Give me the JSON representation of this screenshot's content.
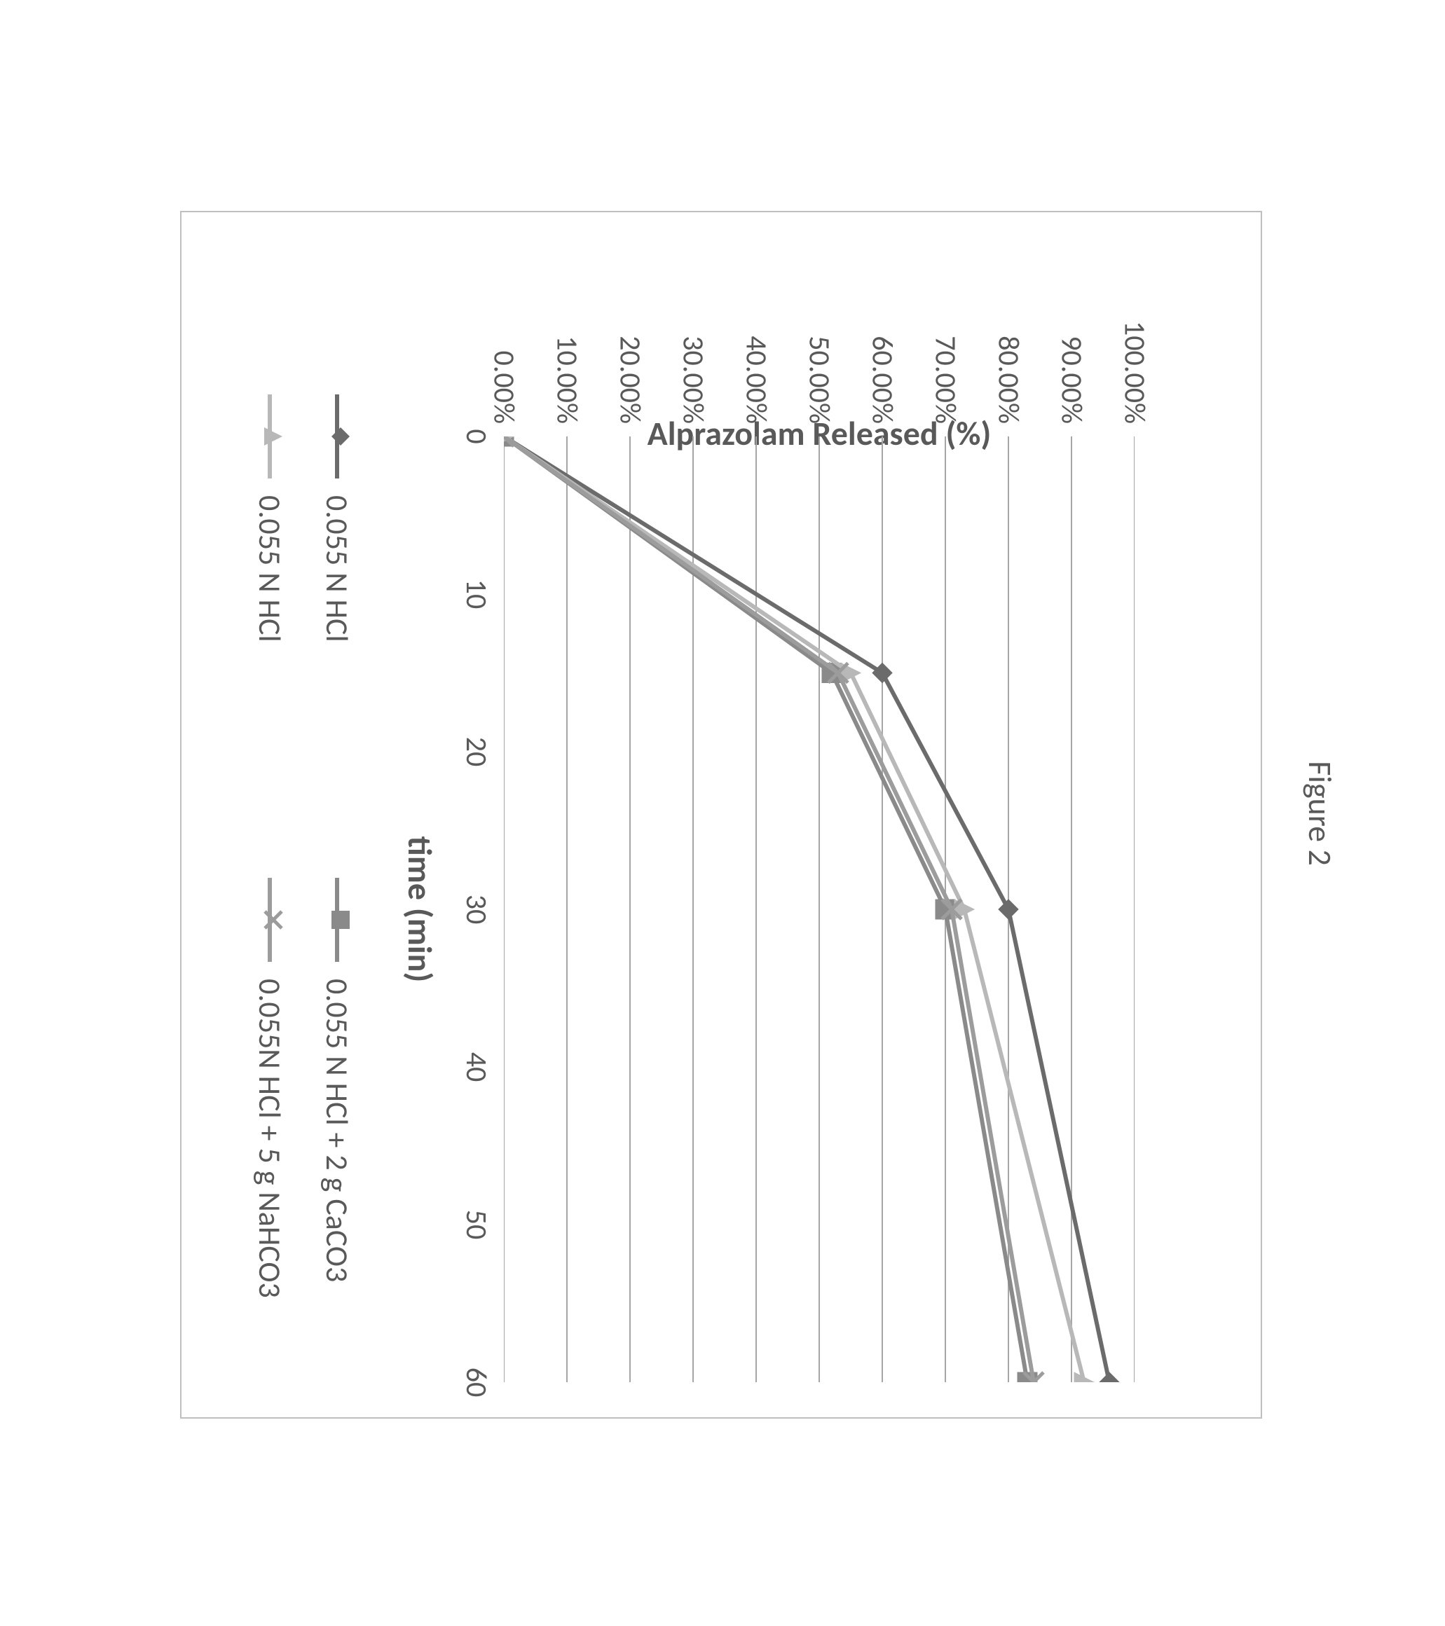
{
  "figure_caption": "Figure 2",
  "chart": {
    "type": "line",
    "x_label": "time (min)",
    "y_label": "Alprazolam Released (%)",
    "xlim": [
      0,
      60
    ],
    "ylim": [
      0,
      100
    ],
    "xticks": [
      0,
      10,
      20,
      30,
      40,
      50,
      60
    ],
    "yticks": [
      0,
      10,
      20,
      30,
      40,
      50,
      60,
      70,
      80,
      90,
      100
    ],
    "ytick_labels": [
      "0.00%",
      "10.00%",
      "20.00%",
      "30.00%",
      "40.00%",
      "50.00%",
      "60.00%",
      "70.00%",
      "80.00%",
      "90.00%",
      "100.00%"
    ],
    "xtick_labels": [
      "0",
      "10",
      "20",
      "30",
      "40",
      "50",
      "60"
    ],
    "gridline_color": "#a6a6a6",
    "background_color": "#ffffff",
    "tick_font_color": "#595959",
    "tick_font_size_pt": 30,
    "axis_title_font_size_pt": 34,
    "border_color": "#bfbfbf",
    "line_width": 6,
    "marker_size": 28,
    "series": [
      {
        "label": "0.055 N HCl",
        "marker": "diamond",
        "color": "#6b6b6b",
        "x": [
          0,
          15,
          30,
          60
        ],
        "y": [
          0,
          60,
          80,
          96
        ]
      },
      {
        "label": "0.055 N HCl + 2 g CaCO3",
        "marker": "square",
        "color": "#8a8a8a",
        "x": [
          0,
          15,
          30,
          60
        ],
        "y": [
          0,
          52,
          70,
          83
        ]
      },
      {
        "label": "0.055 N HCl",
        "marker": "triangle",
        "color": "#b8b8b8",
        "x": [
          0,
          15,
          30,
          60
        ],
        "y": [
          0,
          55,
          73,
          92
        ]
      },
      {
        "label": "0.055N HCl + 5 g NaHCO3",
        "marker": "x",
        "color": "#9c9c9c",
        "x": [
          0,
          15,
          30,
          60
        ],
        "y": [
          0,
          53,
          71,
          84
        ]
      }
    ]
  }
}
